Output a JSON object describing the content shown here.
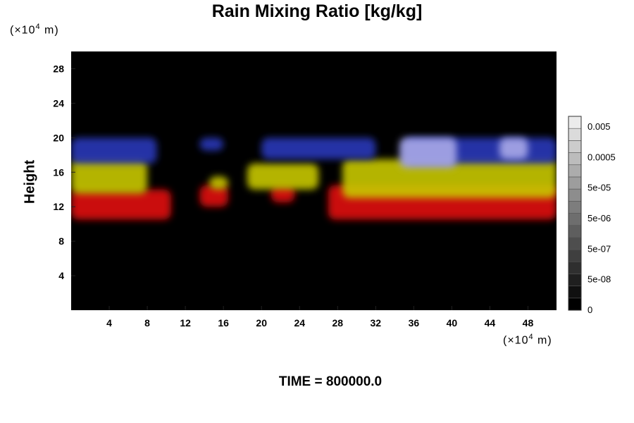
{
  "chart_data": {
    "type": "heatmap",
    "title": "Rain Mixing Ratio [kg/kg]",
    "ylabel": "Height",
    "y_unit_prefix": "(×10",
    "y_unit_exp": "4",
    "y_unit_suffix": " m)",
    "x_unit_prefix": "(×10",
    "x_unit_exp": "4",
    "x_unit_suffix": " m)",
    "xlim": [
      0,
      51
    ],
    "ylim": [
      0,
      30
    ],
    "x_ticks": [
      4,
      8,
      12,
      16,
      20,
      24,
      28,
      32,
      36,
      40,
      44,
      48
    ],
    "y_ticks": [
      4,
      8,
      12,
      16,
      20,
      24,
      28
    ],
    "background_color": "#000000",
    "colorbar": {
      "labels": [
        "0.005",
        "0.0005",
        "5e-05",
        "5e-06",
        "5e-07",
        "5e-08",
        "0"
      ],
      "levels": 16
    },
    "layers": [
      {
        "color": "#e01010",
        "segments": [
          [
            0,
            10.5,
            10.5,
            14
          ],
          [
            13.5,
            16.5,
            12,
            14.5
          ],
          [
            21,
            23.5,
            12.5,
            14.5
          ],
          [
            27,
            51,
            10.5,
            14.5
          ]
        ]
      },
      {
        "color": "#c8c800",
        "segments": [
          [
            0,
            8,
            13.5,
            17.5
          ],
          [
            14.5,
            16.5,
            14,
            15.5
          ],
          [
            18.5,
            26,
            14,
            17
          ],
          [
            28.5,
            51,
            13,
            17.5
          ]
        ]
      },
      {
        "color": "#2838b8",
        "segments": [
          [
            0,
            9,
            17,
            20
          ],
          [
            13.5,
            16,
            18.5,
            20
          ],
          [
            20,
            32,
            17.5,
            20
          ],
          [
            35,
            51,
            17,
            20
          ]
        ]
      },
      {
        "color": "#a8a8e8",
        "segments": [
          [
            34.5,
            40.5,
            16.5,
            20
          ],
          [
            45,
            48,
            17.5,
            20
          ]
        ]
      }
    ],
    "footer": "TIME = 800000.0"
  }
}
